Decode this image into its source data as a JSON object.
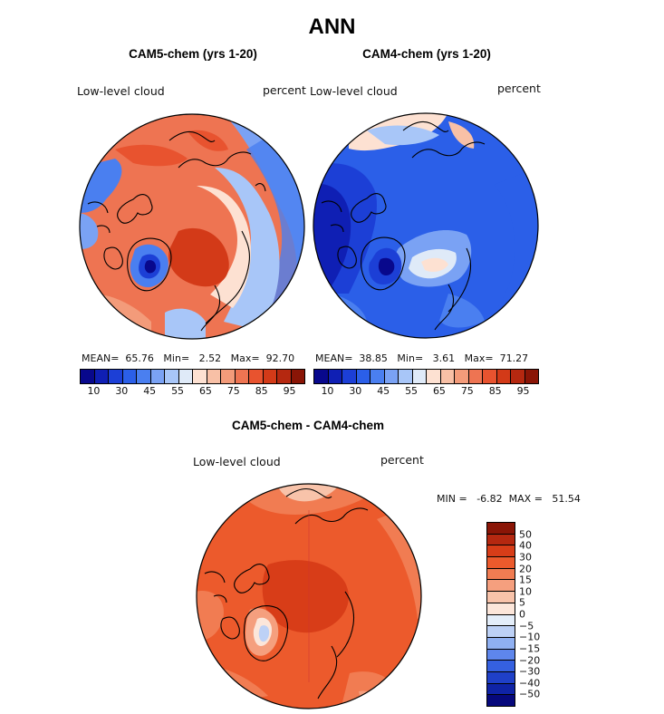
{
  "title": "ANN",
  "panels": {
    "cam5": {
      "title": "CAM5-chem (yrs 1-20)",
      "variable": "Low-level cloud",
      "units": "percent",
      "stats": {
        "mean_label": "MEAN=",
        "mean": "65.76",
        "min_label": "Min=",
        "min": "2.52",
        "max_label": "Max=",
        "max": "92.70"
      }
    },
    "cam4": {
      "title": "CAM4-chem (yrs 1-20)",
      "variable": "Low-level cloud",
      "units": "percent",
      "stats": {
        "mean_label": "MEAN=",
        "mean": "38.85",
        "min_label": "Min=",
        "min": "3.61",
        "max_label": "Max=",
        "max": "71.27"
      }
    },
    "diff": {
      "title": "CAM5-chem - CAM4-chem",
      "variable": "Low-level cloud",
      "units": "percent",
      "min_label": "MIN =",
      "min": "-6.82",
      "max_label": "MAX =",
      "max": "51.54"
    }
  },
  "colorbar_abs": {
    "colors": [
      "#08088c",
      "#0f1fb4",
      "#1c3fd6",
      "#2b5fe8",
      "#4a7ff0",
      "#7aa2f4",
      "#a8c6f8",
      "#dfeaf8",
      "#fde1d2",
      "#f8c0a6",
      "#f39b7a",
      "#ee7452",
      "#e8532f",
      "#d33a18",
      "#b52810",
      "#8a1506"
    ],
    "tick_labels": [
      "10",
      "30",
      "45",
      "55",
      "65",
      "75",
      "85",
      "95"
    ]
  },
  "colorbar_diff": {
    "colors": [
      "#8a1506",
      "#b52810",
      "#d83d18",
      "#ec5a2c",
      "#f17c52",
      "#f59f7e",
      "#f8c3aa",
      "#fce6da",
      "#e4eefa",
      "#bdd1f6",
      "#8fb0f2",
      "#5e86ec",
      "#3560e0",
      "#1f40c8",
      "#0f23a6",
      "#06087c"
    ],
    "tick_labels": [
      "50",
      "40",
      "30",
      "20",
      "15",
      "10",
      "5",
      "0",
      "−5",
      "−10",
      "−15",
      "−20",
      "−30",
      "−40",
      "−50"
    ]
  }
}
